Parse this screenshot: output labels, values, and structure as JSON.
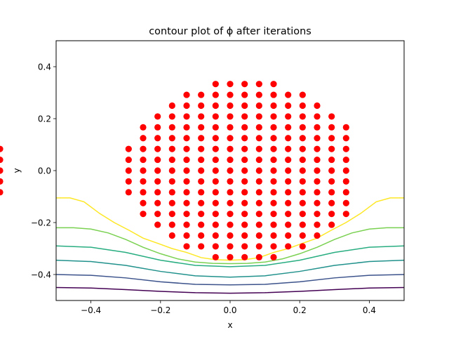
{
  "chart_data": {
    "type": "scatter",
    "title": "contour plot of ϕ after iterations",
    "xlabel": "x",
    "ylabel": "y",
    "xlim": [
      -0.5,
      0.5
    ],
    "ylim": [
      -0.5,
      0.5
    ],
    "xticks": [
      -0.4,
      -0.2,
      0.0,
      0.2,
      0.4
    ],
    "xtick_labels": [
      "−0.4",
      "−0.2",
      "0.0",
      "0.2",
      "0.4"
    ],
    "yticks": [
      -0.4,
      -0.2,
      0.0,
      0.2,
      0.4
    ],
    "ytick_labels": [
      "−0.4",
      "−0.2",
      "0.0",
      "0.2",
      "0.4"
    ],
    "grid": false,
    "scatter": {
      "color": "#ff0000",
      "grid_x": [
        -0.3333,
        -0.2917,
        -0.25,
        -0.2083,
        -0.1667,
        -0.125,
        -0.0833,
        -0.0417,
        0.0,
        0.0417,
        0.0833,
        0.125,
        0.1667,
        0.2083,
        0.25,
        0.2917,
        0.3333
      ],
      "grid_y": [
        0.3333,
        0.2917,
        0.25,
        0.2083,
        0.1667,
        0.125,
        0.0833,
        0.0417,
        0.0,
        -0.0417,
        -0.0833,
        -0.125,
        -0.1667,
        -0.2083,
        -0.25,
        -0.2917,
        -0.3333
      ],
      "row_x_index_ranges": [
        [
          7,
          11
        ],
        [
          5,
          13
        ],
        [
          4,
          14
        ],
        [
          3,
          15
        ],
        [
          2,
          16
        ],
        [
          2,
          16
        ],
        [
          1,
          17
        ],
        [
          1,
          17
        ],
        [
          1,
          17
        ],
        [
          1,
          17
        ],
        [
          1,
          17
        ],
        [
          2,
          16
        ],
        [
          2,
          16
        ],
        [
          3,
          15
        ],
        [
          4,
          14
        ],
        [
          5,
          13
        ],
        [
          7,
          11
        ]
      ]
    },
    "contours": [
      {
        "color": "#440154",
        "points": [
          [
            -0.5,
            -0.45
          ],
          [
            -0.4,
            -0.452
          ],
          [
            -0.3,
            -0.458
          ],
          [
            -0.2,
            -0.465
          ],
          [
            -0.1,
            -0.47
          ],
          [
            0.0,
            -0.472
          ],
          [
            0.1,
            -0.47
          ],
          [
            0.2,
            -0.465
          ],
          [
            0.3,
            -0.458
          ],
          [
            0.4,
            -0.452
          ],
          [
            0.5,
            -0.45
          ]
        ]
      },
      {
        "color": "#3b528b",
        "points": [
          [
            -0.5,
            -0.4
          ],
          [
            -0.4,
            -0.403
          ],
          [
            -0.3,
            -0.413
          ],
          [
            -0.2,
            -0.428
          ],
          [
            -0.1,
            -0.438
          ],
          [
            0.0,
            -0.44
          ],
          [
            0.1,
            -0.438
          ],
          [
            0.2,
            -0.428
          ],
          [
            0.3,
            -0.413
          ],
          [
            0.4,
            -0.403
          ],
          [
            0.5,
            -0.4
          ]
        ]
      },
      {
        "color": "#21918c",
        "points": [
          [
            -0.5,
            -0.345
          ],
          [
            -0.4,
            -0.35
          ],
          [
            -0.3,
            -0.365
          ],
          [
            -0.2,
            -0.388
          ],
          [
            -0.1,
            -0.405
          ],
          [
            0.0,
            -0.41
          ],
          [
            0.1,
            -0.405
          ],
          [
            0.2,
            -0.388
          ],
          [
            0.3,
            -0.365
          ],
          [
            0.4,
            -0.35
          ],
          [
            0.5,
            -0.345
          ]
        ]
      },
      {
        "color": "#27ad81",
        "points": [
          [
            -0.5,
            -0.29
          ],
          [
            -0.4,
            -0.295
          ],
          [
            -0.3,
            -0.315
          ],
          [
            -0.2,
            -0.345
          ],
          [
            -0.1,
            -0.365
          ],
          [
            0.0,
            -0.37
          ],
          [
            0.1,
            -0.365
          ],
          [
            0.2,
            -0.345
          ],
          [
            0.3,
            -0.315
          ],
          [
            0.4,
            -0.295
          ],
          [
            0.5,
            -0.29
          ]
        ]
      },
      {
        "color": "#7ad151",
        "points": [
          [
            -0.5,
            -0.22
          ],
          [
            -0.45,
            -0.22
          ],
          [
            -0.4,
            -0.225
          ],
          [
            -0.35,
            -0.24
          ],
          [
            -0.3,
            -0.265
          ],
          [
            -0.25,
            -0.295
          ],
          [
            -0.2,
            -0.32
          ],
          [
            -0.15,
            -0.34
          ],
          [
            -0.1,
            -0.352
          ],
          [
            -0.05,
            -0.357
          ],
          [
            0.0,
            -0.358
          ],
          [
            0.05,
            -0.357
          ],
          [
            0.1,
            -0.352
          ],
          [
            0.15,
            -0.34
          ],
          [
            0.2,
            -0.32
          ],
          [
            0.25,
            -0.295
          ],
          [
            0.3,
            -0.265
          ],
          [
            0.35,
            -0.24
          ],
          [
            0.4,
            -0.225
          ],
          [
            0.45,
            -0.22
          ],
          [
            0.5,
            -0.22
          ]
        ]
      },
      {
        "color": "#fde725",
        "points": [
          [
            -0.5,
            -0.105
          ],
          [
            -0.46,
            -0.105
          ],
          [
            -0.42,
            -0.12
          ],
          [
            -0.375,
            -0.165
          ],
          [
            -0.333,
            -0.2
          ],
          [
            -0.29,
            -0.23
          ],
          [
            -0.25,
            -0.26
          ],
          [
            -0.208,
            -0.28
          ],
          [
            -0.167,
            -0.3
          ],
          [
            -0.125,
            -0.315
          ],
          [
            -0.083,
            -0.335
          ],
          [
            -0.042,
            -0.343
          ],
          [
            0.0,
            -0.345
          ],
          [
            0.042,
            -0.343
          ],
          [
            0.083,
            -0.335
          ],
          [
            0.125,
            -0.315
          ],
          [
            0.167,
            -0.3
          ],
          [
            0.208,
            -0.28
          ],
          [
            0.25,
            -0.26
          ],
          [
            0.29,
            -0.23
          ],
          [
            0.333,
            -0.2
          ],
          [
            0.375,
            -0.165
          ],
          [
            0.42,
            -0.12
          ],
          [
            0.46,
            -0.105
          ],
          [
            0.5,
            -0.105
          ]
        ]
      }
    ]
  }
}
